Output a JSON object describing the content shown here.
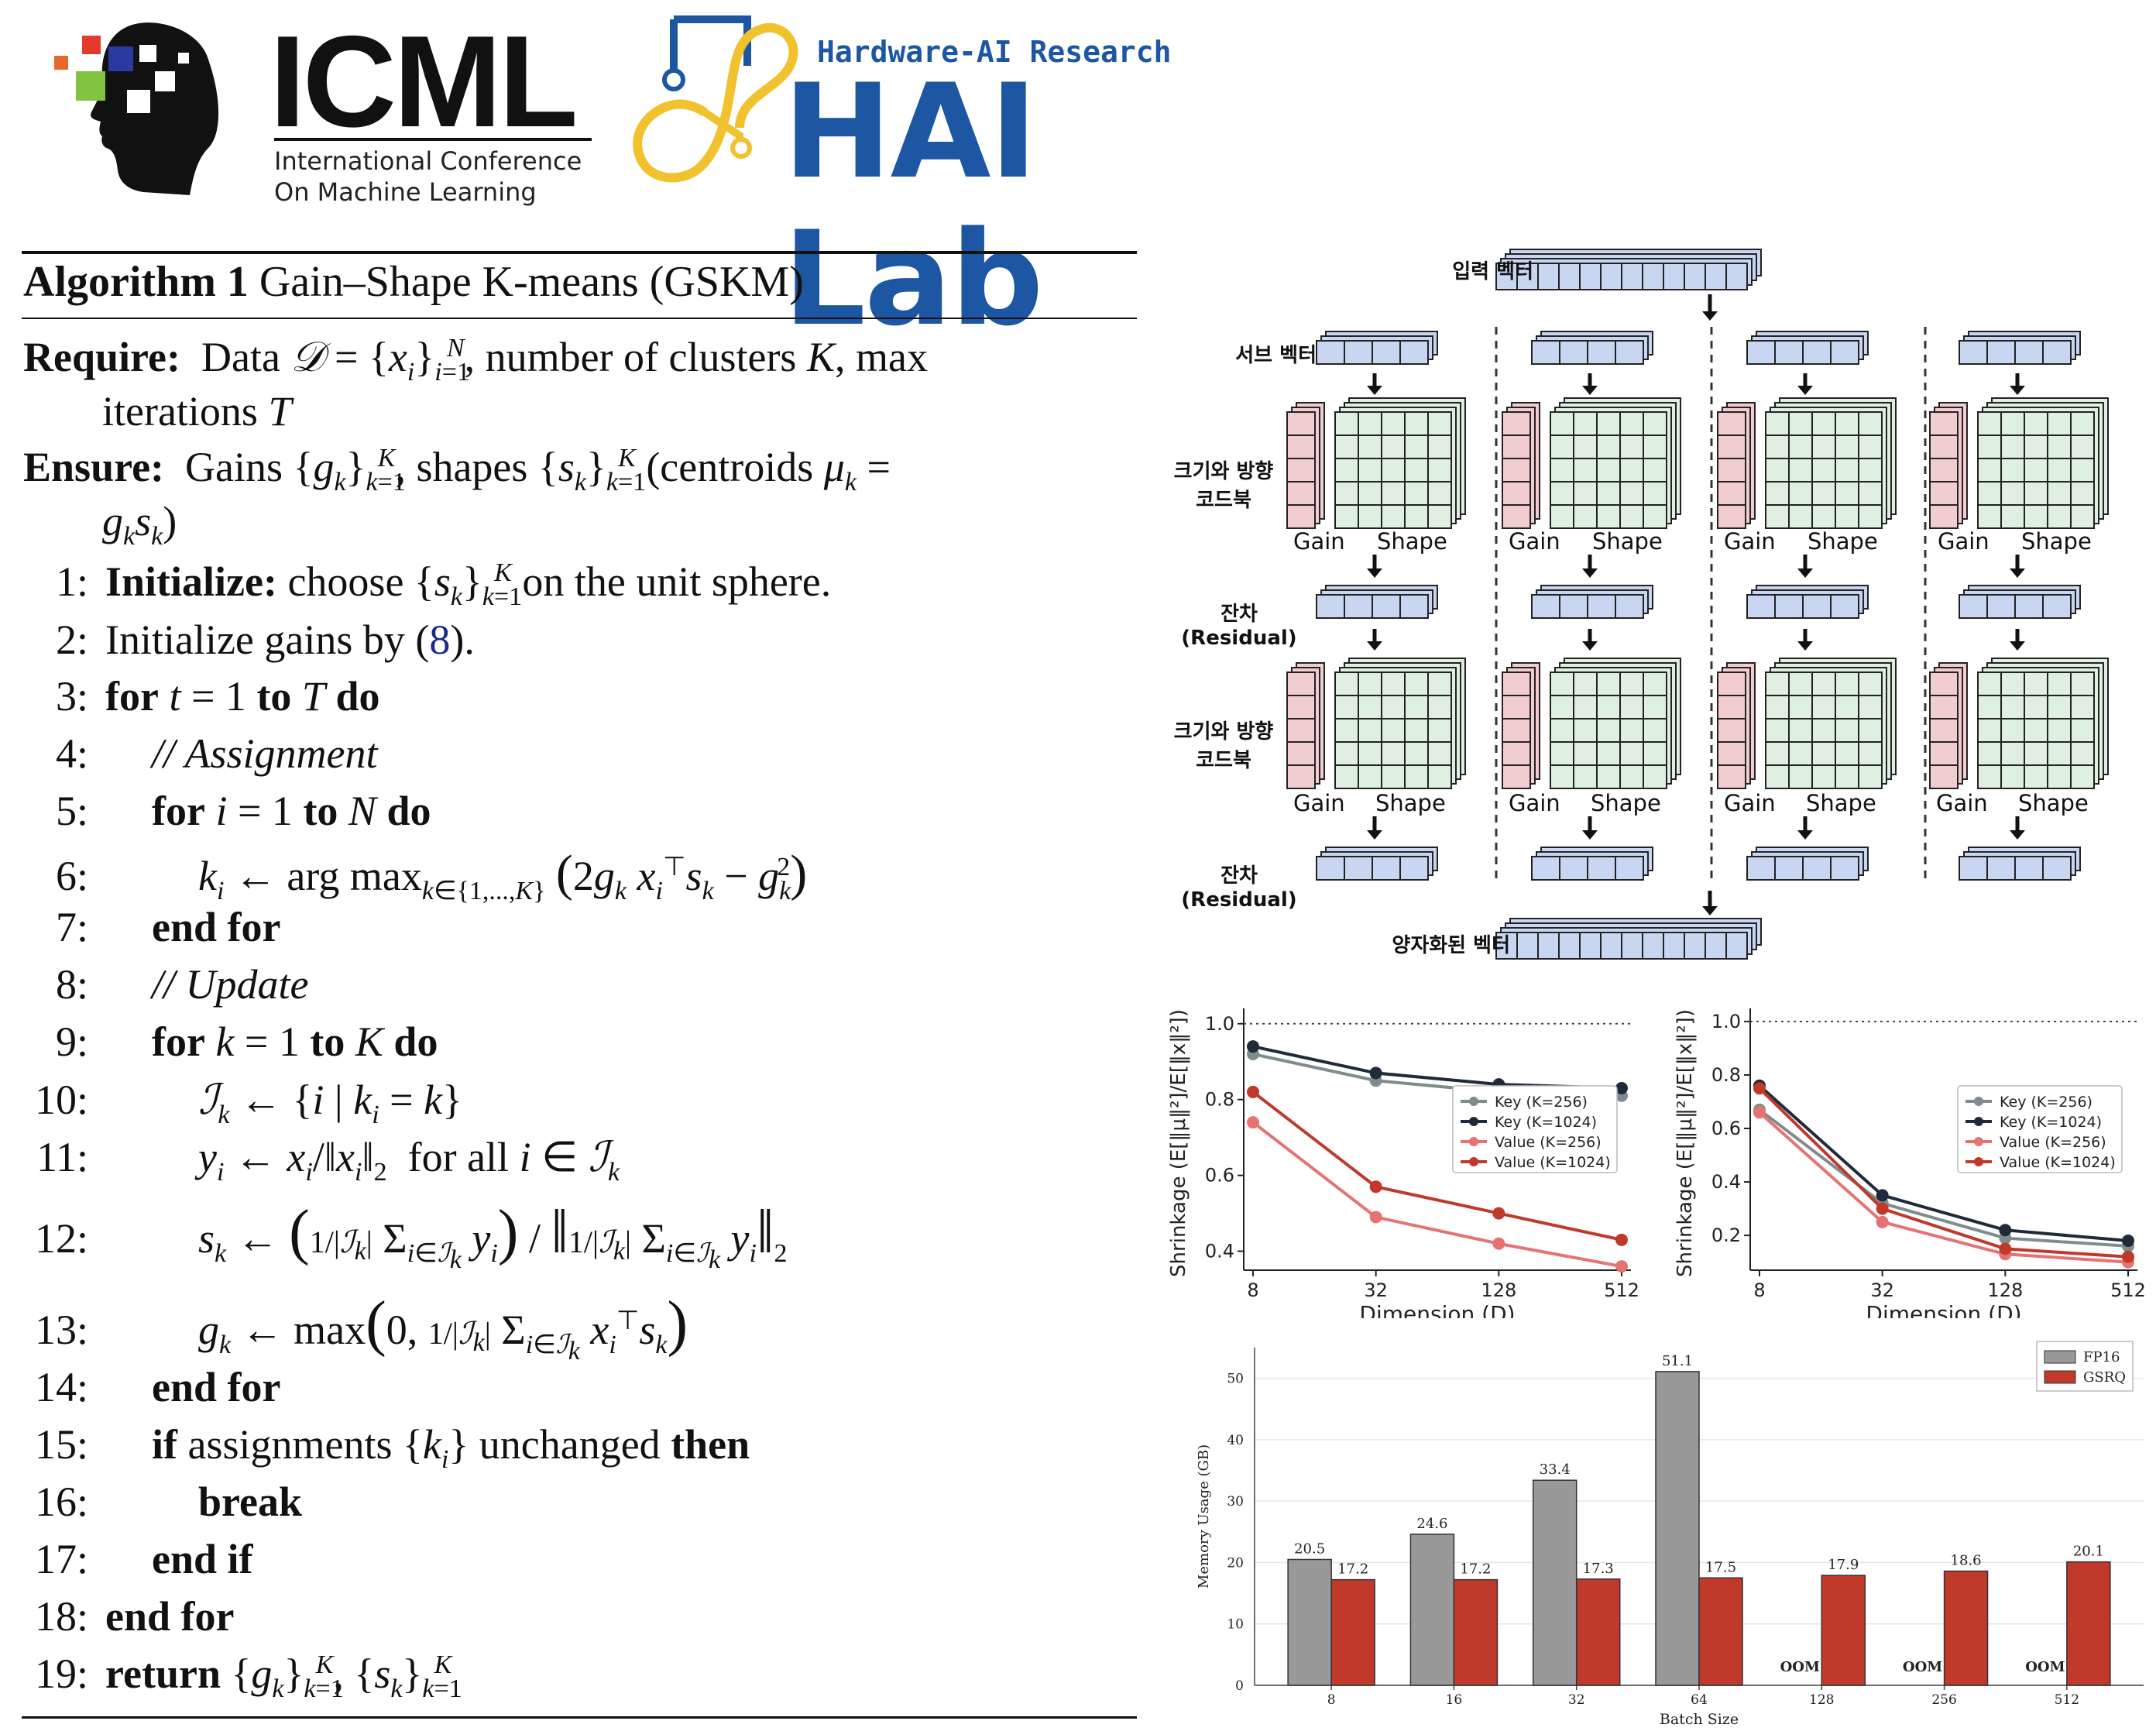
{
  "header": {
    "icml_title": "ICML",
    "icml_line1": "International Conference",
    "icml_line2": "On Machine Learning",
    "lab_subtitle": "Hardware-AI Research",
    "lab_title": "HAI Lab"
  },
  "algorithm": {
    "title_bold": "Algorithm 1",
    "title_rest": " Gain–Shape K-means (GSKM)",
    "require_kw": "Require:",
    "require_text": "Data 𝒟 = {x_i}_{i=1}^N, number of clusters K, max",
    "require_cont": "iterations T",
    "ensure_kw": "Ensure:",
    "ensure_text": "Gains {g_k}_{k=1}^K, shapes {s_k}_{k=1}^K (centroids μ_k =",
    "ensure_cont": "g_k s_k)",
    "lines": [
      {
        "n": "1:",
        "text": "Initialize: choose {s_k}_{k=1}^K on the unit sphere."
      },
      {
        "n": "2:",
        "text": "Initialize gains by (8)."
      },
      {
        "n": "3:",
        "text": "for t = 1 to T do"
      },
      {
        "n": "4:",
        "text": "// Assignment"
      },
      {
        "n": "5:",
        "text": "for i = 1 to N do"
      },
      {
        "n": "6:",
        "text": "k_i ← arg max_{k∈{1,...,K}} (2g_k x_i^⊤ s_k − g_k^2)"
      },
      {
        "n": "7:",
        "text": "end for"
      },
      {
        "n": "8:",
        "text": "// Update"
      },
      {
        "n": "9:",
        "text": "for k = 1 to K do"
      },
      {
        "n": "10:",
        "text": "ℐ_k ← {i | k_i = k}"
      },
      {
        "n": "11:",
        "text": "y_i ← x_i/‖x_i‖_2 for all i ∈ ℐ_k"
      },
      {
        "n": "12:",
        "text": "s_k ← (1/|ℐ_k| Σ_{i∈ℐ_k} y_i) / ‖1/|ℐ_k| Σ_{i∈ℐ_k} y_i‖_2"
      },
      {
        "n": "13:",
        "text": "g_k ← max(0, 1/|ℐ_k| Σ_{i∈ℐ_k} x_i^⊤ s_k)"
      },
      {
        "n": "14:",
        "text": "end for"
      },
      {
        "n": "15:",
        "text": "if assignments {k_i} unchanged then"
      },
      {
        "n": "16:",
        "text": "break"
      },
      {
        "n": "17:",
        "text": "end if"
      },
      {
        "n": "18:",
        "text": "end for"
      },
      {
        "n": "19:",
        "text": "return {g_k}_{k=1}^K, {s_k}_{k=1}^K"
      }
    ]
  },
  "diagram": {
    "input_label": "입력 벡터",
    "sub_label": "서브 벡터",
    "codebook_label_1": "크기와 방향",
    "codebook_label_2": "코드북",
    "residual_label": "잔차 (Residual)",
    "output_label": "양자화된 벡터",
    "gain": "Gain",
    "shape": "Shape",
    "colors": {
      "vector": "#c9d6f2",
      "gain": "#f2cdd0",
      "shape": "#dff0e0"
    }
  },
  "chart_data": [
    {
      "type": "line",
      "x": [
        8,
        32,
        128,
        512
      ],
      "xlabel": "Dimension (D)",
      "ylabel": "Shrinkage (E[‖μ‖²]/E[‖x‖²])",
      "ylim": [
        0.35,
        1.02
      ],
      "yticks": [
        0.4,
        0.6,
        0.8,
        1.0
      ],
      "reference_line": 1.0,
      "legend_position": "right",
      "series": [
        {
          "name": "Key (K=256)",
          "color": "#7f8c8d",
          "values": [
            0.92,
            0.85,
            0.82,
            0.81
          ]
        },
        {
          "name": "Key (K=1024)",
          "color": "#1f2a3a",
          "values": [
            0.94,
            0.87,
            0.84,
            0.83
          ]
        },
        {
          "name": "Value (K=256)",
          "color": "#e57373",
          "values": [
            0.74,
            0.49,
            0.42,
            0.36
          ]
        },
        {
          "name": "Value (K=1024)",
          "color": "#c0392b",
          "values": [
            0.82,
            0.57,
            0.5,
            0.43
          ]
        }
      ]
    },
    {
      "type": "line",
      "x": [
        8,
        32,
        128,
        512
      ],
      "xlabel": "Dimension (D)",
      "ylabel": "Shrinkage (E[‖μ‖²]/E[‖x‖²])",
      "ylim": [
        0.07,
        1.02
      ],
      "yticks": [
        0.2,
        0.4,
        0.6,
        0.8,
        1.0
      ],
      "reference_line": 1.0,
      "legend_position": "right",
      "series": [
        {
          "name": "Key (K=256)",
          "color": "#7f8c8d",
          "values": [
            0.67,
            0.32,
            0.19,
            0.16
          ]
        },
        {
          "name": "Key (K=1024)",
          "color": "#1f2a3a",
          "values": [
            0.76,
            0.35,
            0.22,
            0.18
          ]
        },
        {
          "name": "Value (K=256)",
          "color": "#e57373",
          "values": [
            0.66,
            0.25,
            0.13,
            0.1
          ]
        },
        {
          "name": "Value (K=1024)",
          "color": "#c0392b",
          "values": [
            0.75,
            0.3,
            0.15,
            0.12
          ]
        }
      ]
    },
    {
      "type": "bar",
      "categories": [
        "8",
        "16",
        "32",
        "64",
        "128",
        "256",
        "512"
      ],
      "xlabel": "Batch Size",
      "ylabel": "Memory Usage (GB)",
      "ylim": [
        0,
        55
      ],
      "yticks": [
        0,
        10,
        20,
        30,
        40,
        50
      ],
      "legend_position": "top-right",
      "oom_label": "OOM",
      "series": [
        {
          "name": "FP16",
          "color": "#999999",
          "values": [
            20.5,
            24.6,
            33.4,
            51.1,
            null,
            null,
            null
          ],
          "labels": [
            "20.5",
            "24.6",
            "33.4",
            "51.1",
            "OOM",
            "OOM",
            "OOM"
          ]
        },
        {
          "name": "GSRQ",
          "color": "#c0392b",
          "values": [
            17.2,
            17.2,
            17.3,
            17.5,
            17.9,
            18.6,
            20.1
          ],
          "labels": [
            "17.2",
            "17.2",
            "17.3",
            "17.5",
            "17.9",
            "18.6",
            "20.1"
          ]
        }
      ]
    }
  ]
}
